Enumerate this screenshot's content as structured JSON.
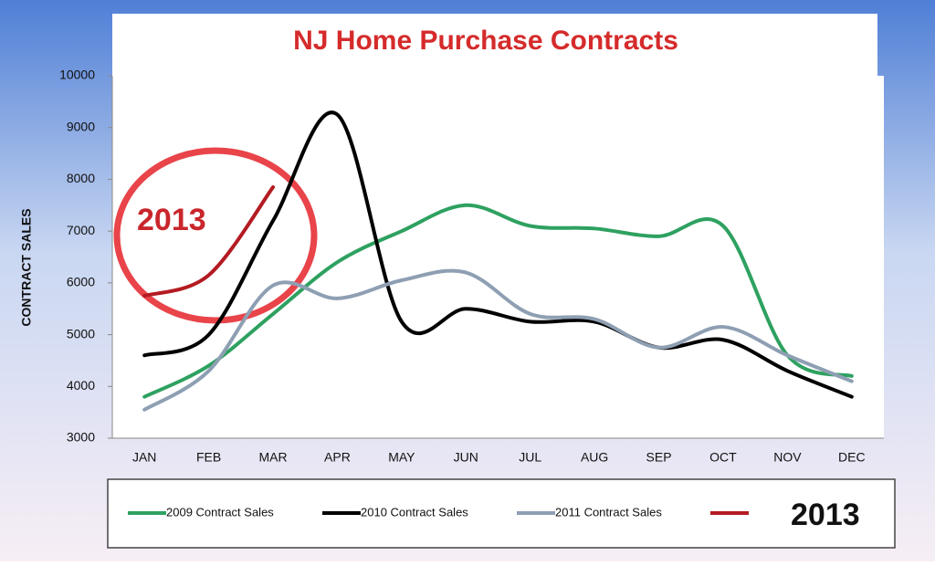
{
  "chart_data": {
    "type": "line",
    "title": "NJ Home Purchase Contracts",
    "y_label": "CONTRACT SALES",
    "categories": [
      "JAN",
      "FEB",
      "MAR",
      "APR",
      "MAY",
      "JUN",
      "JUL",
      "AUG",
      "SEP",
      "OCT",
      "NOV",
      "DEC"
    ],
    "series": [
      {
        "name": "2009 Contract Sales",
        "color": "#2ea160",
        "values": [
          3800,
          4400,
          5400,
          6400,
          7000,
          7500,
          7100,
          7050,
          6900,
          7100,
          4600,
          4200
        ]
      },
      {
        "name": "2010 Contract Sales",
        "color": "#000000",
        "values": [
          4600,
          5000,
          7200,
          9250,
          5250,
          5500,
          5250,
          5250,
          4750,
          4900,
          4300,
          3800
        ]
      },
      {
        "name": "2011 Contract Sales",
        "color": "#8e9fb3",
        "values": [
          3550,
          4300,
          5950,
          5700,
          6050,
          6200,
          5400,
          5300,
          4750,
          5150,
          4600,
          4100
        ]
      },
      {
        "name": "2013",
        "color": "#b31b22",
        "values": [
          5750,
          6150,
          7850,
          null,
          null,
          null,
          null,
          null,
          null,
          null,
          null,
          null
        ]
      }
    ],
    "ylim": [
      3000,
      10000
    ],
    "yticks": [
      3000,
      4000,
      5000,
      6000,
      7000,
      8000,
      9000,
      10000
    ],
    "annotations": [
      "2013"
    ]
  }
}
